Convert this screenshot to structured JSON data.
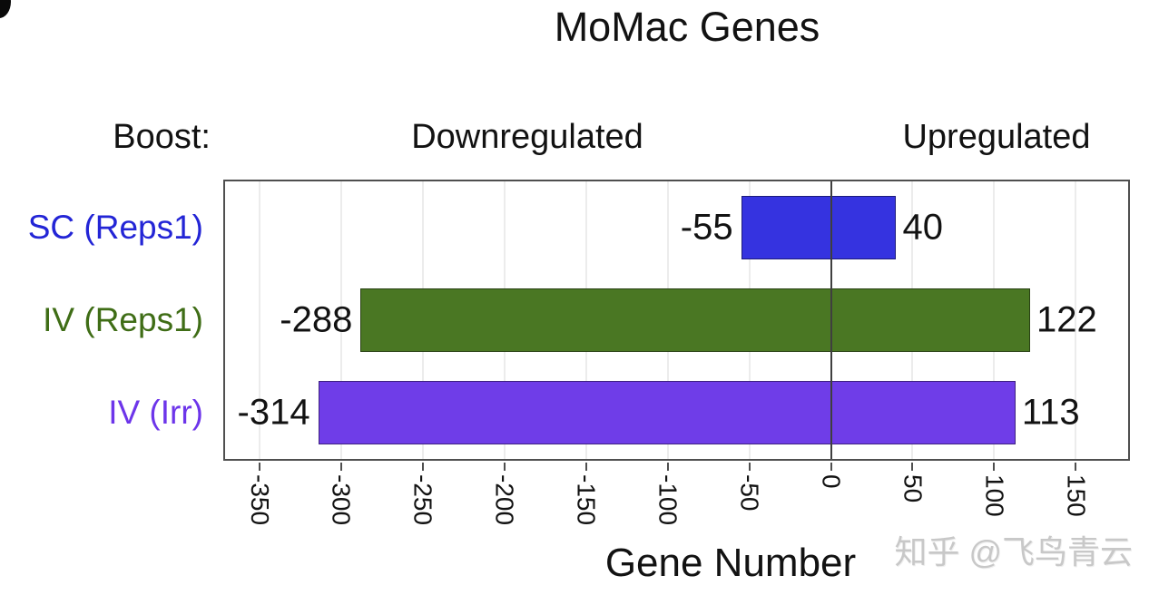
{
  "page": {
    "title": "MoMac Genes",
    "boost_label": "Boost:",
    "downregulated_label": "Downregulated",
    "upregulated_label": "Upregulated",
    "xaxis_label": "Gene Number",
    "watermark": "知乎 @飞鸟青云"
  },
  "colors": {
    "bar_blue": "#3533e0",
    "bar_green": "#4a7723",
    "bar_purple": "#6f3de8",
    "label_blue": "#2325d6",
    "label_green": "#3f6d16",
    "label_purple": "#6d35ea",
    "zero_line": "#3f3f3f",
    "frame": "#4f4f4f",
    "gridline": "#ececec",
    "watermark_gray": "#c8c8c8"
  },
  "chart_data": {
    "type": "bar",
    "orientation": "horizontal-diverging",
    "title": "MoMac Genes",
    "xlabel": "Gene Number",
    "xlim": [
      -371,
      182
    ],
    "xticks": [
      -350,
      -300,
      -250,
      -200,
      -150,
      -100,
      -50,
      0,
      50,
      100,
      150
    ],
    "grid": "vertical-light",
    "legend": "none",
    "categories": [
      "SC (Reps1)",
      "IV (Reps1)",
      "IV (Irr)"
    ],
    "series": [
      {
        "name": "Downregulated",
        "values": [
          -55,
          -288,
          -314
        ]
      },
      {
        "name": "Upregulated",
        "values": [
          40,
          122,
          113
        ]
      }
    ],
    "rows": [
      {
        "category": "SC (Reps1)",
        "down": -55,
        "up": 40,
        "bar_color": "#3533e0",
        "label_color": "#2325d6"
      },
      {
        "category": "IV (Reps1)",
        "down": -288,
        "up": 122,
        "bar_color": "#4a7723",
        "label_color": "#3f6d16"
      },
      {
        "category": "IV (Irr)",
        "down": -314,
        "up": 113,
        "bar_color": "#6f3de8",
        "label_color": "#6d35ea"
      }
    ]
  }
}
